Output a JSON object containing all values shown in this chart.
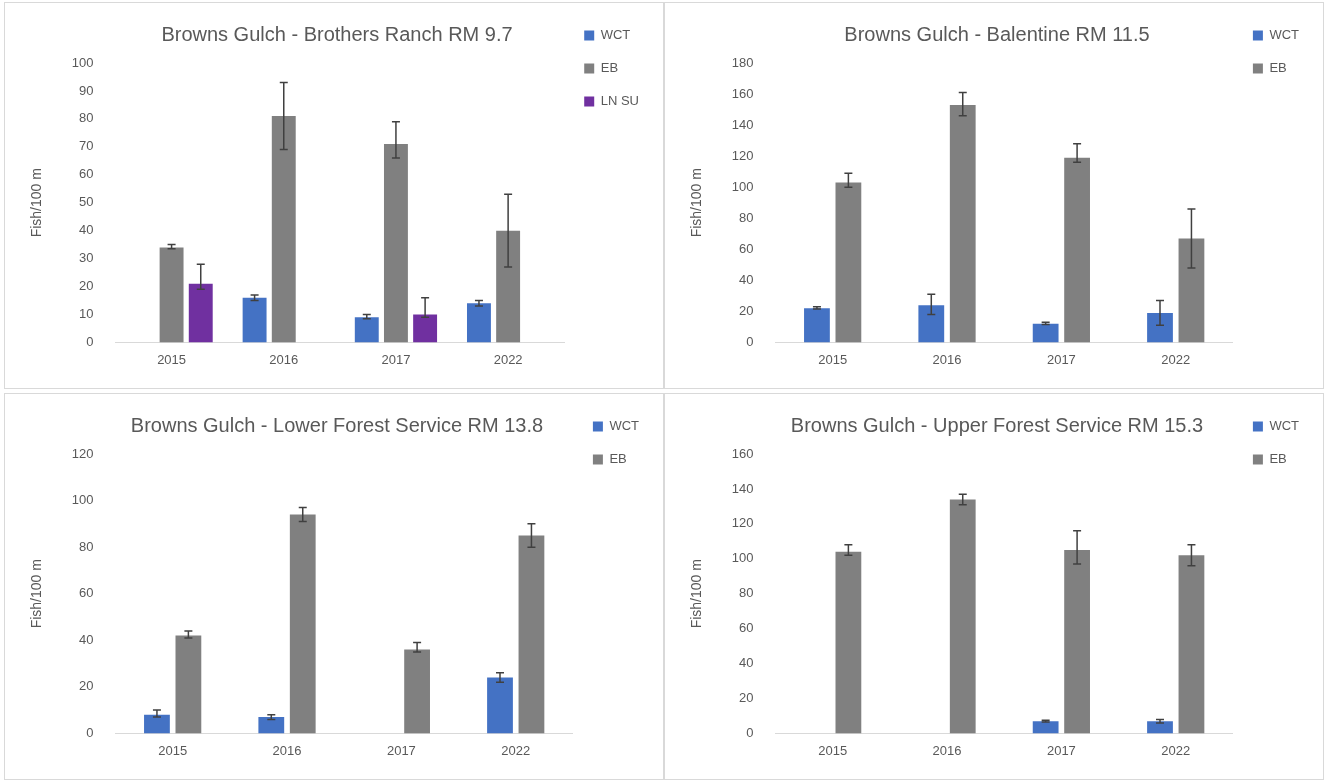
{
  "chart_data": [
    {
      "type": "bar",
      "title": "Browns Gulch - Brothers Ranch RM 9.7",
      "ylabel": "Fish/100 m",
      "categories": [
        "2015",
        "2016",
        "2017",
        "2022"
      ],
      "ylim": [
        0,
        100
      ],
      "yticks": [
        0,
        10,
        20,
        30,
        40,
        50,
        60,
        70,
        80,
        90,
        100
      ],
      "grid": false,
      "legend": "top right",
      "series": [
        {
          "name": "WCT",
          "color": "#4472c4",
          "values": [
            null,
            16,
            9,
            14
          ],
          "errors": [
            null,
            [
              15,
              17
            ],
            [
              8.5,
              10
            ],
            [
              13,
              15
            ]
          ]
        },
        {
          "name": "EB",
          "color": "#808080",
          "values": [
            34,
            81,
            71,
            40
          ],
          "errors": [
            [
              33.5,
              35
            ],
            [
              69,
              93
            ],
            [
              66,
              79
            ],
            [
              27,
              53
            ]
          ]
        },
        {
          "name": "LN SU",
          "color": "#7030a0",
          "values": [
            21,
            null,
            10,
            null
          ],
          "errors": [
            [
              19,
              28
            ],
            null,
            [
              9,
              16
            ],
            null
          ]
        }
      ]
    },
    {
      "type": "bar",
      "title": "Browns Gulch - Balentine RM 11.5",
      "ylabel": "Fish/100 m",
      "categories": [
        "2015",
        "2016",
        "2017",
        "2022"
      ],
      "ylim": [
        0,
        180
      ],
      "yticks": [
        0,
        20,
        40,
        60,
        80,
        100,
        120,
        140,
        160,
        180
      ],
      "grid": false,
      "legend": "top right",
      "series": [
        {
          "name": "WCT",
          "color": "#4472c4",
          "values": [
            22,
            24,
            12,
            19
          ],
          "errors": [
            [
              21.5,
              23
            ],
            [
              18,
              31
            ],
            [
              11.5,
              13
            ],
            [
              11,
              27
            ]
          ]
        },
        {
          "name": "EB",
          "color": "#808080",
          "values": [
            103,
            153,
            119,
            67
          ],
          "errors": [
            [
              100,
              109
            ],
            [
              146,
              161
            ],
            [
              116,
              128
            ],
            [
              48,
              86
            ]
          ]
        }
      ]
    },
    {
      "type": "bar",
      "title": "Browns Gulch - Lower Forest Service RM 13.8",
      "ylabel": "Fish/100 m",
      "categories": [
        "2015",
        "2016",
        "2017",
        "2022"
      ],
      "ylim": [
        0,
        120
      ],
      "yticks": [
        0,
        20,
        40,
        60,
        80,
        100,
        120
      ],
      "grid": false,
      "legend": "top right",
      "series": [
        {
          "name": "WCT",
          "color": "#4472c4",
          "values": [
            8,
            7,
            null,
            24
          ],
          "errors": [
            [
              7,
              10
            ],
            [
              6,
              8
            ],
            null,
            [
              22,
              26
            ]
          ]
        },
        {
          "name": "EB",
          "color": "#808080",
          "values": [
            42,
            94,
            36,
            85
          ],
          "errors": [
            [
              41,
              44
            ],
            [
              91,
              97
            ],
            [
              35,
              39
            ],
            [
              80,
              90
            ]
          ]
        }
      ]
    },
    {
      "type": "bar",
      "title": "Browns Gulch - Upper Forest Service RM 15.3",
      "ylabel": "Fish/100 m",
      "categories": [
        "2015",
        "2016",
        "2017",
        "2022"
      ],
      "ylim": [
        0,
        160
      ],
      "yticks": [
        0,
        20,
        40,
        60,
        80,
        100,
        120,
        140,
        160
      ],
      "grid": false,
      "legend": "top right",
      "series": [
        {
          "name": "WCT",
          "color": "#4472c4",
          "values": [
            null,
            null,
            7,
            7
          ],
          "errors": [
            null,
            null,
            [
              6.5,
              7.5
            ],
            [
              6,
              8
            ]
          ]
        },
        {
          "name": "EB",
          "color": "#808080",
          "values": [
            104,
            134,
            105,
            102
          ],
          "errors": [
            [
              102,
              108
            ],
            [
              131,
              137
            ],
            [
              97,
              116
            ],
            [
              96,
              108
            ]
          ]
        }
      ]
    }
  ]
}
